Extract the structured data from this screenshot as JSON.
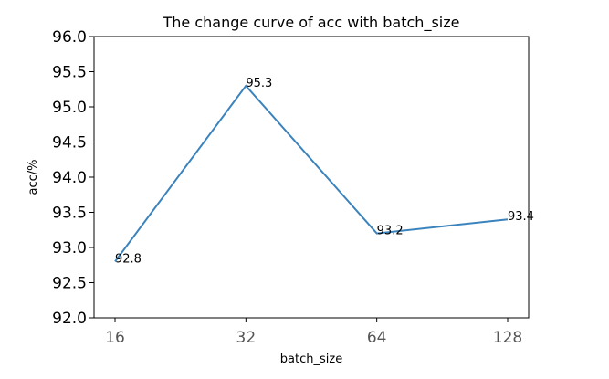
{
  "chart_data": {
    "type": "line",
    "title": "The change curve of acc with batch_size",
    "xlabel": "batch_size",
    "ylabel": "acc/%",
    "categories": [
      "16",
      "32",
      "64",
      "128"
    ],
    "series": [
      {
        "values": [
          92.8,
          95.3,
          93.2,
          93.4
        ],
        "data_labels": [
          "92.8",
          "95.3",
          "93.2",
          "93.4"
        ],
        "color": "#3b83bd"
      }
    ],
    "ylim": [
      92.0,
      96.0
    ],
    "yticks": [
      "92.0",
      "92.5",
      "93.0",
      "93.5",
      "94.0",
      "94.5",
      "95.0",
      "95.5",
      "96.0"
    ],
    "grid": false,
    "legend": "none"
  }
}
